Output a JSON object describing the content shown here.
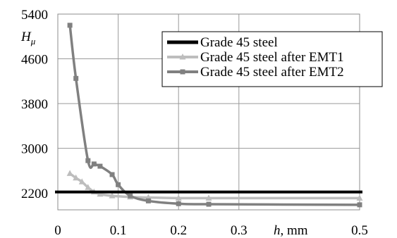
{
  "chart_data": {
    "type": "line",
    "title": "",
    "xlabel": "",
    "xlabel_var": "h",
    "xlabel_unit": ", mm",
    "ylabel": "",
    "ylabel_var": "H",
    "ylabel_sub": "μ",
    "xlim": [
      0,
      0.5
    ],
    "ylim": [
      1900,
      5400
    ],
    "xticks": [
      0,
      0.1,
      0.2,
      0.3,
      0.5
    ],
    "xtick_labels": [
      "0",
      "0.1",
      "0.2",
      "0.3",
      "0.5"
    ],
    "yticks": [
      2200,
      3000,
      3800,
      4600,
      5400
    ],
    "ytick_labels": [
      "2200",
      "3000",
      "3800",
      "4600",
      "5400"
    ],
    "grid": true,
    "legend_position": "top-right",
    "series": [
      {
        "name": "Grade 45 steel",
        "color": "#000000",
        "marker": "none",
        "x": [
          0,
          0.5
        ],
        "y": [
          2220,
          2220
        ]
      },
      {
        "name": "Grade 45 steel after EMT1",
        "color": "#bdbdbd",
        "marker": "triangle",
        "x": [
          0.02,
          0.03,
          0.04,
          0.05,
          0.06,
          0.07,
          0.09,
          0.12,
          0.15,
          0.2,
          0.25,
          0.5
        ],
        "y": [
          2550,
          2470,
          2400,
          2300,
          2220,
          2180,
          2150,
          2130,
          2120,
          2110,
          2110,
          2110
        ]
      },
      {
        "name": "Grade 45 steel after EMT2",
        "color": "#808080",
        "marker": "square",
        "x": [
          0.02,
          0.03,
          0.05,
          0.06,
          0.07,
          0.09,
          0.1,
          0.12,
          0.15,
          0.2,
          0.25,
          0.5
        ],
        "y": [
          5200,
          4250,
          2780,
          2720,
          2680,
          2530,
          2350,
          2150,
          2060,
          2010,
          2000,
          1990
        ]
      }
    ]
  }
}
